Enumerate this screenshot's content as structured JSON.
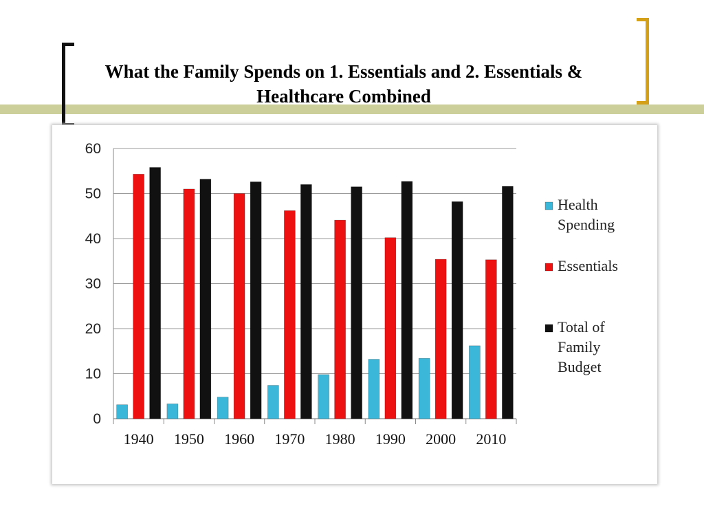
{
  "title": "What the Family Spends on 1. Essentials and 2. Essentials & Healthcare Combined",
  "colors": {
    "accent_rule": "#cdcf9a",
    "left_bracket": "#111111",
    "right_bracket": "#d4a017"
  },
  "chart_data": {
    "type": "bar",
    "categories": [
      "1940",
      "1950",
      "1960",
      "1970",
      "1980",
      "1990",
      "2000",
      "2010"
    ],
    "series": [
      {
        "name": "Health Spending",
        "legend_lines": [
          "Health",
          "Spending"
        ],
        "color": "#3bb7d9",
        "values": [
          3.1,
          3.3,
          4.8,
          7.4,
          9.8,
          13.2,
          13.4,
          16.2
        ]
      },
      {
        "name": "Essentials",
        "legend_lines": [
          "Essentials"
        ],
        "color": "#ee1111",
        "values": [
          54.3,
          51.0,
          50.0,
          46.2,
          44.1,
          40.2,
          35.4,
          35.3
        ]
      },
      {
        "name": "Total of Family Budget",
        "legend_lines": [
          "Total of",
          "Family",
          "Budget"
        ],
        "color": "#111111",
        "values": [
          55.8,
          53.2,
          52.6,
          52.0,
          51.5,
          52.7,
          48.2,
          51.6
        ]
      }
    ],
    "yticks": [
      "0",
      "10",
      "20",
      "30",
      "40",
      "50",
      "60"
    ],
    "ylim": [
      0,
      60
    ],
    "grid": true,
    "legend": "right"
  }
}
